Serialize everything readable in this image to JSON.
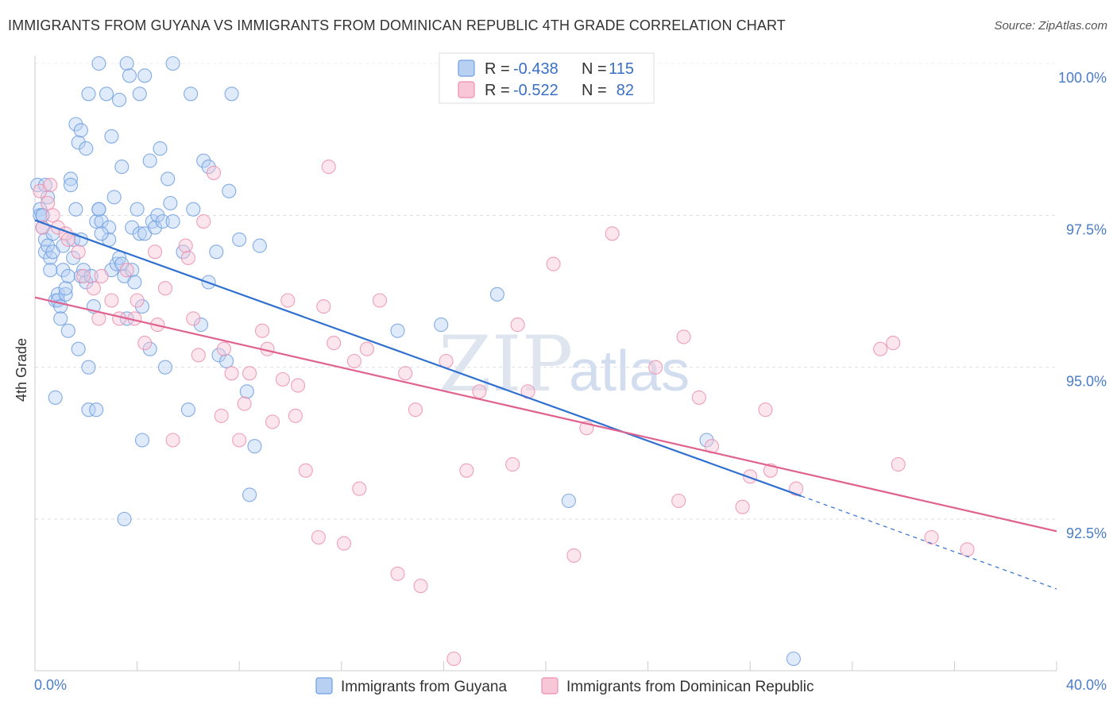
{
  "title": "IMMIGRANTS FROM GUYANA VS IMMIGRANTS FROM DOMINICAN REPUBLIC 4TH GRADE CORRELATION CHART",
  "source": "Source: ZipAtlas.com",
  "watermark": {
    "zip": "ZIP",
    "atlas": "atlas"
  },
  "colors": {
    "series1": "#6f9fe0",
    "series1_fill": "#b8d1f3",
    "series1_line": "#2f6fd0",
    "series2": "#ec8fae",
    "series2_fill": "#f8c7d7",
    "series2_line": "#e0628e",
    "grid": "#dddddd",
    "tick_text": "#4a7cc7"
  },
  "legend": {
    "r_label": "R =",
    "n_label": "N =",
    "rows": [
      {
        "r": "-0.438",
        "n": "115"
      },
      {
        "r": "-0.522",
        "n": "82"
      }
    ]
  },
  "chart_data": {
    "type": "scatter",
    "title": "IMMIGRANTS FROM GUYANA VS IMMIGRANTS FROM DOMINICAN REPUBLIC 4TH GRADE CORRELATION CHART",
    "xlabel": "",
    "ylabel": "4th Grade",
    "xlim": [
      0,
      40
    ],
    "ylim": [
      90.0,
      100.4
    ],
    "x_tick_labels": [
      "0.0%",
      "40.0%"
    ],
    "y_ticks": [
      100.0,
      97.5,
      95.0,
      92.5
    ],
    "y_tick_labels": [
      "100.0%",
      "97.5%",
      "95.0%",
      "92.5%"
    ],
    "grid": true,
    "legend_position": "top-center",
    "series": [
      {
        "name": "Immigrants from Guyana",
        "r": -0.438,
        "n": 115,
        "trend": {
          "x0": 0,
          "y0": 97.42,
          "x1": 30.0,
          "y1": 92.88,
          "dash_x1": 40.0,
          "dash_y1": 91.35
        },
        "points": [
          [
            0.1,
            98.0
          ],
          [
            0.2,
            97.6
          ],
          [
            0.2,
            97.5
          ],
          [
            0.3,
            97.3
          ],
          [
            0.3,
            97.5
          ],
          [
            0.4,
            97.1
          ],
          [
            0.4,
            96.9
          ],
          [
            0.4,
            98.0
          ],
          [
            0.5,
            97.8
          ],
          [
            0.5,
            97.0
          ],
          [
            0.6,
            96.8
          ],
          [
            0.6,
            96.6
          ],
          [
            0.7,
            97.2
          ],
          [
            0.7,
            96.9
          ],
          [
            0.8,
            96.1
          ],
          [
            0.8,
            94.5
          ],
          [
            0.9,
            96.2
          ],
          [
            0.9,
            96.1
          ],
          [
            1.0,
            96.0
          ],
          [
            1.0,
            95.8
          ],
          [
            1.1,
            97.0
          ],
          [
            1.1,
            96.6
          ],
          [
            1.2,
            96.2
          ],
          [
            1.2,
            96.3
          ],
          [
            1.3,
            96.5
          ],
          [
            1.3,
            95.6
          ],
          [
            1.4,
            98.1
          ],
          [
            1.4,
            98.0
          ],
          [
            1.5,
            96.8
          ],
          [
            1.5,
            97.1
          ],
          [
            1.6,
            97.6
          ],
          [
            1.6,
            99.0
          ],
          [
            1.7,
            98.7
          ],
          [
            1.7,
            95.3
          ],
          [
            1.8,
            97.1
          ],
          [
            1.8,
            96.5
          ],
          [
            1.9,
            96.6
          ],
          [
            2.0,
            98.6
          ],
          [
            2.0,
            96.4
          ],
          [
            2.1,
            99.5
          ],
          [
            2.1,
            95.0
          ],
          [
            2.1,
            94.3
          ],
          [
            2.2,
            96.5
          ],
          [
            2.3,
            96.0
          ],
          [
            2.4,
            97.4
          ],
          [
            2.4,
            94.3
          ],
          [
            2.5,
            97.6
          ],
          [
            2.6,
            97.4
          ],
          [
            2.5,
            97.6
          ],
          [
            2.5,
            100.0
          ],
          [
            2.8,
            99.5
          ],
          [
            2.9,
            97.3
          ],
          [
            2.9,
            97.1
          ],
          [
            3.0,
            98.8
          ],
          [
            3.0,
            96.6
          ],
          [
            3.1,
            97.8
          ],
          [
            3.2,
            96.7
          ],
          [
            3.3,
            96.8
          ],
          [
            3.3,
            99.4
          ],
          [
            3.4,
            98.3
          ],
          [
            3.4,
            96.7
          ],
          [
            3.5,
            96.5
          ],
          [
            3.5,
            92.5
          ],
          [
            3.6,
            95.8
          ],
          [
            3.6,
            100.0
          ],
          [
            3.7,
            99.8
          ],
          [
            3.8,
            96.6
          ],
          [
            3.8,
            97.3
          ],
          [
            3.9,
            96.4
          ],
          [
            4.0,
            97.6
          ],
          [
            4.1,
            97.2
          ],
          [
            4.1,
            99.5
          ],
          [
            4.2,
            93.8
          ],
          [
            4.2,
            96.0
          ],
          [
            4.3,
            97.2
          ],
          [
            4.5,
            95.3
          ],
          [
            4.5,
            98.4
          ],
          [
            4.6,
            97.4
          ],
          [
            4.7,
            97.3
          ],
          [
            4.8,
            97.5
          ],
          [
            4.9,
            98.6
          ],
          [
            5.0,
            97.4
          ],
          [
            5.1,
            95.0
          ],
          [
            5.2,
            98.1
          ],
          [
            5.3,
            97.7
          ],
          [
            5.4,
            97.4
          ],
          [
            5.4,
            100.0
          ],
          [
            5.8,
            96.9
          ],
          [
            6.0,
            94.3
          ],
          [
            6.1,
            99.5
          ],
          [
            6.2,
            97.6
          ],
          [
            6.5,
            95.7
          ],
          [
            6.6,
            98.4
          ],
          [
            6.8,
            98.3
          ],
          [
            7.1,
            96.9
          ],
          [
            7.2,
            95.2
          ],
          [
            7.5,
            95.1
          ],
          [
            7.6,
            97.9
          ],
          [
            7.7,
            99.5
          ],
          [
            8.0,
            97.1
          ],
          [
            8.3,
            94.6
          ],
          [
            8.4,
            92.9
          ],
          [
            8.6,
            93.7
          ],
          [
            8.8,
            97.0
          ],
          [
            14.2,
            95.6
          ],
          [
            15.9,
            95.7
          ],
          [
            18.1,
            96.2
          ],
          [
            26.3,
            93.8
          ],
          [
            20.9,
            92.8
          ],
          [
            29.7,
            90.2
          ],
          [
            1.8,
            98.9
          ],
          [
            2.6,
            97.2
          ],
          [
            4.3,
            99.8
          ],
          [
            0.3,
            97.5
          ],
          [
            6.8,
            96.4
          ]
        ]
      },
      {
        "name": "Immigrants from Dominican Republic",
        "r": -0.522,
        "n": 82,
        "trend": {
          "x0": 0,
          "y0": 96.15,
          "x1": 40.0,
          "y1": 92.3
        },
        "points": [
          [
            0.2,
            97.9
          ],
          [
            0.3,
            97.3
          ],
          [
            0.5,
            97.7
          ],
          [
            0.6,
            98.0
          ],
          [
            0.7,
            97.5
          ],
          [
            0.9,
            97.3
          ],
          [
            1.2,
            97.2
          ],
          [
            1.3,
            97.1
          ],
          [
            1.7,
            96.9
          ],
          [
            1.9,
            96.5
          ],
          [
            2.3,
            96.3
          ],
          [
            2.5,
            95.8
          ],
          [
            2.6,
            96.5
          ],
          [
            3.0,
            96.1
          ],
          [
            3.3,
            95.8
          ],
          [
            3.6,
            96.6
          ],
          [
            3.9,
            95.8
          ],
          [
            4.0,
            96.1
          ],
          [
            4.3,
            95.4
          ],
          [
            4.7,
            96.9
          ],
          [
            4.8,
            95.7
          ],
          [
            5.1,
            96.3
          ],
          [
            5.4,
            93.8
          ],
          [
            5.9,
            97.0
          ],
          [
            6.0,
            96.8
          ],
          [
            6.2,
            95.8
          ],
          [
            6.4,
            95.2
          ],
          [
            6.6,
            97.4
          ],
          [
            7.0,
            98.2
          ],
          [
            7.3,
            94.2
          ],
          [
            7.4,
            95.3
          ],
          [
            7.7,
            94.9
          ],
          [
            8.0,
            93.8
          ],
          [
            8.2,
            94.4
          ],
          [
            8.4,
            94.9
          ],
          [
            8.9,
            95.6
          ],
          [
            9.1,
            95.3
          ],
          [
            9.3,
            94.1
          ],
          [
            9.7,
            94.8
          ],
          [
            9.9,
            96.1
          ],
          [
            10.2,
            94.2
          ],
          [
            10.3,
            94.7
          ],
          [
            10.6,
            93.3
          ],
          [
            11.1,
            92.2
          ],
          [
            11.3,
            96.0
          ],
          [
            11.5,
            98.3
          ],
          [
            11.7,
            95.4
          ],
          [
            12.1,
            92.1
          ],
          [
            12.5,
            95.1
          ],
          [
            12.7,
            93.0
          ],
          [
            13.0,
            95.3
          ],
          [
            13.5,
            96.1
          ],
          [
            14.2,
            91.6
          ],
          [
            14.5,
            94.9
          ],
          [
            14.9,
            94.3
          ],
          [
            15.1,
            91.4
          ],
          [
            16.1,
            95.1
          ],
          [
            16.4,
            90.2
          ],
          [
            16.9,
            93.3
          ],
          [
            17.4,
            94.6
          ],
          [
            18.7,
            93.4
          ],
          [
            18.9,
            95.7
          ],
          [
            19.3,
            94.6
          ],
          [
            20.3,
            96.7
          ],
          [
            21.1,
            91.9
          ],
          [
            21.6,
            94.0
          ],
          [
            22.6,
            97.2
          ],
          [
            24.3,
            95.0
          ],
          [
            25.2,
            92.8
          ],
          [
            25.4,
            95.5
          ],
          [
            26.0,
            94.5
          ],
          [
            26.5,
            93.7
          ],
          [
            27.7,
            92.7
          ],
          [
            28.0,
            93.2
          ],
          [
            28.6,
            94.3
          ],
          [
            28.8,
            93.3
          ],
          [
            29.8,
            93.0
          ],
          [
            33.1,
            95.3
          ],
          [
            33.6,
            95.4
          ],
          [
            33.8,
            93.4
          ],
          [
            35.1,
            92.2
          ],
          [
            36.5,
            92.0
          ]
        ]
      }
    ]
  },
  "bottom_legend": {
    "items": [
      "Immigrants from Guyana",
      "Immigrants from Dominican Republic"
    ]
  }
}
